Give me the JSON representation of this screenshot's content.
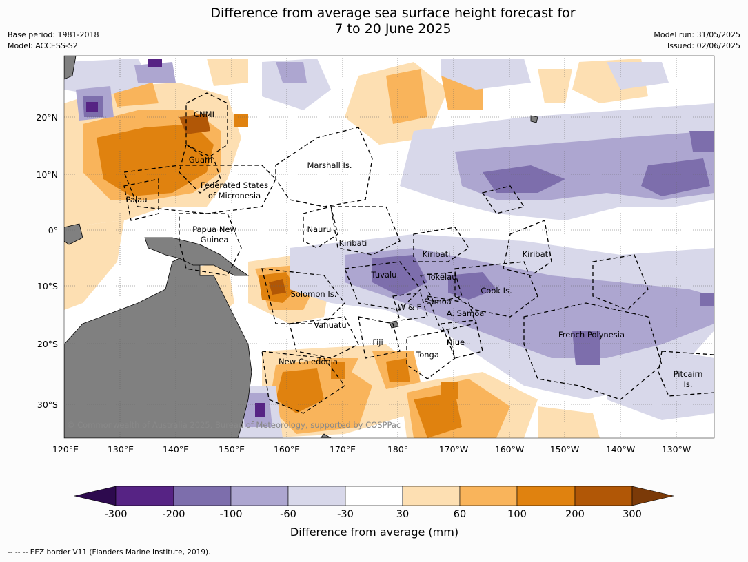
{
  "title": {
    "line1": "Difference from average sea surface height forecast for",
    "line2": "7 to 20 June 2025"
  },
  "meta_left": {
    "base_period": "Base period: 1981-2018",
    "model": "Model: ACCESS-S2"
  },
  "meta_right": {
    "model_run": "Model run: 31/05/2025",
    "issued": "Issued: 02/06/2025"
  },
  "map": {
    "lon_labels": [
      "120°E",
      "130°E",
      "140°E",
      "150°E",
      "160°E",
      "170°E",
      "180°",
      "170°W",
      "160°W",
      "150°W",
      "140°W",
      "130°W"
    ],
    "lat_labels": [
      "20°N",
      "10°N",
      "0°",
      "10°S",
      "20°S",
      "30°S"
    ],
    "region_labels": [
      {
        "id": "cnmi",
        "text": "CNMI"
      },
      {
        "id": "guam",
        "text": "Guam"
      },
      {
        "id": "marshall",
        "text": "Marshall Is."
      },
      {
        "id": "fsm1",
        "text": "Federated States"
      },
      {
        "id": "fsm2",
        "text": "of Micronesia"
      },
      {
        "id": "palau",
        "text": "Palau"
      },
      {
        "id": "png1",
        "text": "Papua New"
      },
      {
        "id": "png2",
        "text": "Guinea"
      },
      {
        "id": "nauru",
        "text": "Nauru"
      },
      {
        "id": "kiribati1",
        "text": "Kiribati"
      },
      {
        "id": "kiribati2",
        "text": "Kiribati"
      },
      {
        "id": "kiribati3",
        "text": "Kiribati"
      },
      {
        "id": "tuvalu",
        "text": "Tuvalu"
      },
      {
        "id": "tokelau",
        "text": "Tokelau"
      },
      {
        "id": "cook",
        "text": "Cook Is."
      },
      {
        "id": "solomon",
        "text": "Solomon Is."
      },
      {
        "id": "wf",
        "text": "W & F"
      },
      {
        "id": "samoa",
        "text": "Samoa"
      },
      {
        "id": "asamoa",
        "text": "A. Samoa"
      },
      {
        "id": "vanuatu",
        "text": "Vanuatu"
      },
      {
        "id": "fiji",
        "text": "Fiji"
      },
      {
        "id": "niue",
        "text": "Niue"
      },
      {
        "id": "tonga",
        "text": "Tonga"
      },
      {
        "id": "frpoly",
        "text": "French Polynesia"
      },
      {
        "id": "newcal",
        "text": "New Caledonia"
      },
      {
        "id": "pitcairn1",
        "text": "Pitcairn"
      },
      {
        "id": "pitcairn2",
        "text": "Is."
      }
    ],
    "copyright": "© Commonwealth of Australia 2025, Bureau of Meteorology, supported by COSPPac",
    "colors": {
      "land": "#808080",
      "ocean": "#ffffff"
    }
  },
  "colorbar": {
    "ticks": [
      "-300",
      "-200",
      "-100",
      "-60",
      "-30",
      "30",
      "60",
      "100",
      "200",
      "300"
    ],
    "colors": [
      "#2d0a4e",
      "#562384",
      "#7d6eac",
      "#ada6d0",
      "#d8d8ea",
      "#ffffff",
      "#fddfb2",
      "#f9b45b",
      "#e0820f",
      "#b15706",
      "#7b3a08"
    ],
    "label": "Difference from average (mm)"
  },
  "footnote": "--  --  -- EEZ border V11 (Flanders Marine Institute, 2019)."
}
